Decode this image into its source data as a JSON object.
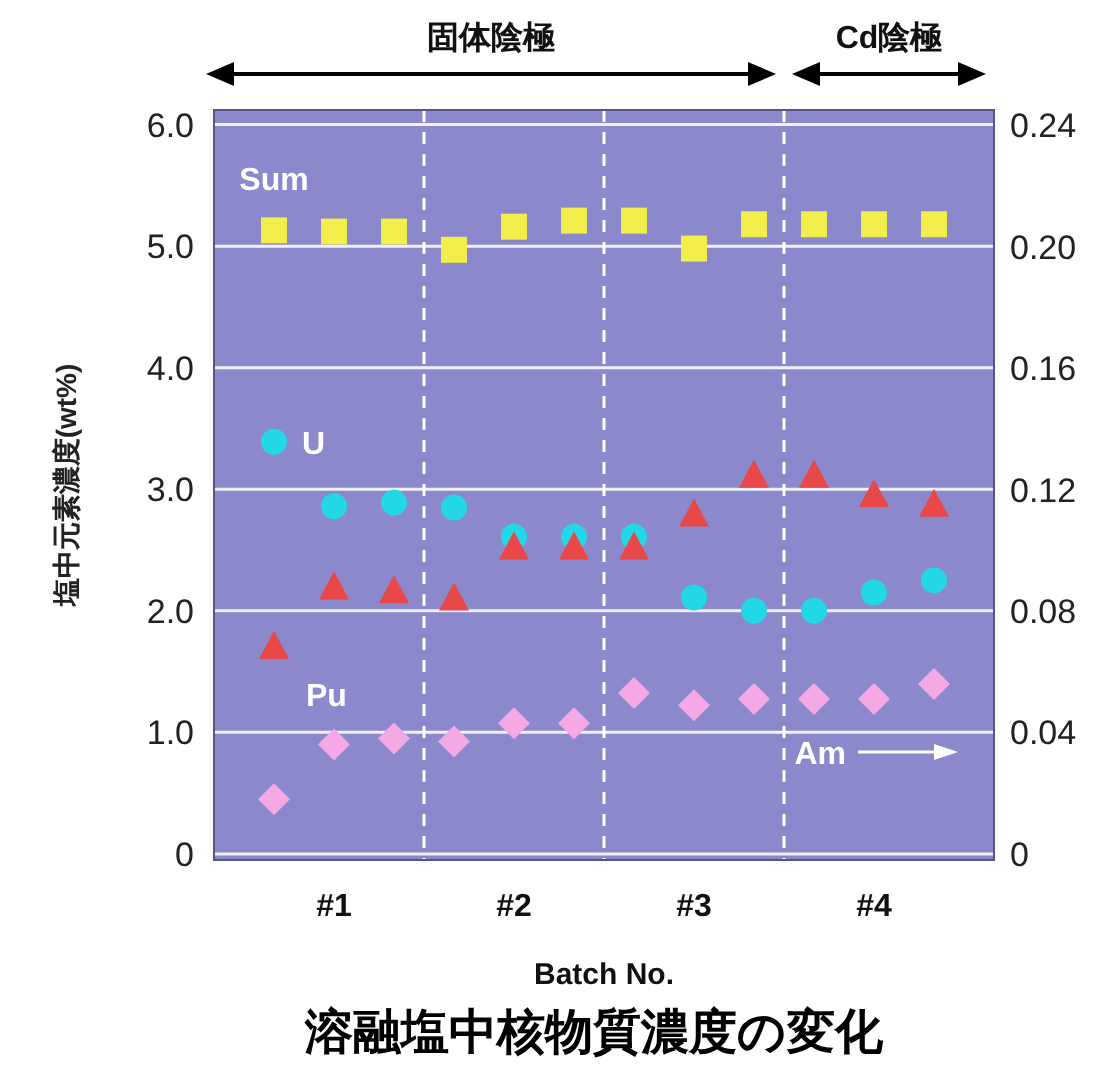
{
  "chart_data": {
    "type": "scatter",
    "title": "溶融塩中核物質濃度の変化",
    "xlabel": "Batch No.",
    "ylabel": "塩中元素濃度(wt%)",
    "categories": [
      null,
      "#1",
      null,
      null,
      "#2",
      null,
      null,
      "#3",
      null,
      null,
      "#4",
      null
    ],
    "ylim": [
      -0.05,
      6.12
    ],
    "yticks": [
      0,
      {
        "value": 1,
        "label": "1.0"
      },
      {
        "value": 2,
        "label": "2.0"
      },
      {
        "value": 3,
        "label": "3.0"
      },
      {
        "value": 4,
        "label": "4.0"
      },
      {
        "value": 5,
        "label": "5.0"
      },
      {
        "value": 6,
        "label": "6.0"
      }
    ],
    "y2lim": [
      -0.002,
      0.245
    ],
    "y2ticks": [
      0,
      {
        "value": 0.04,
        "label": "0.04"
      },
      {
        "value": 0.08,
        "label": "0.08"
      },
      {
        "value": 0.12,
        "label": "0.12"
      },
      {
        "value": 0.16,
        "label": "0.16"
      },
      {
        "value": 0.2,
        "label": "0.20"
      },
      {
        "value": 0.24,
        "label": "0.24"
      }
    ],
    "grid": "y",
    "annotations": [
      "固体陰極",
      "Cd陰極"
    ],
    "series": [
      {
        "name": "Sum",
        "color": "#f2ee4c",
        "marker": "square",
        "values": [
          5.13,
          5.12,
          5.12,
          4.97,
          5.16,
          5.21,
          5.21,
          4.98,
          5.18,
          5.18,
          5.18,
          5.18
        ]
      },
      {
        "name": "U",
        "color": "#22d8e6",
        "marker": "circle",
        "values": [
          3.39,
          2.86,
          2.89,
          2.85,
          2.61,
          2.61,
          2.61,
          2.11,
          2.0,
          2.0,
          2.15,
          2.25
        ]
      },
      {
        "name": "Pu",
        "color": "#e84848",
        "marker": "triangle",
        "values": [
          1.71,
          2.2,
          2.17,
          2.11,
          2.53,
          2.53,
          2.53,
          2.8,
          3.12,
          3.12,
          2.96,
          2.88
        ]
      },
      {
        "name": "Am",
        "color": "#f4a8e4",
        "marker": "diamond",
        "axis": "y2",
        "values": [
          0.018,
          0.036,
          0.038,
          0.037,
          0.043,
          0.043,
          0.053,
          0.049,
          0.051,
          0.051,
          0.051,
          0.056
        ]
      }
    ]
  }
}
